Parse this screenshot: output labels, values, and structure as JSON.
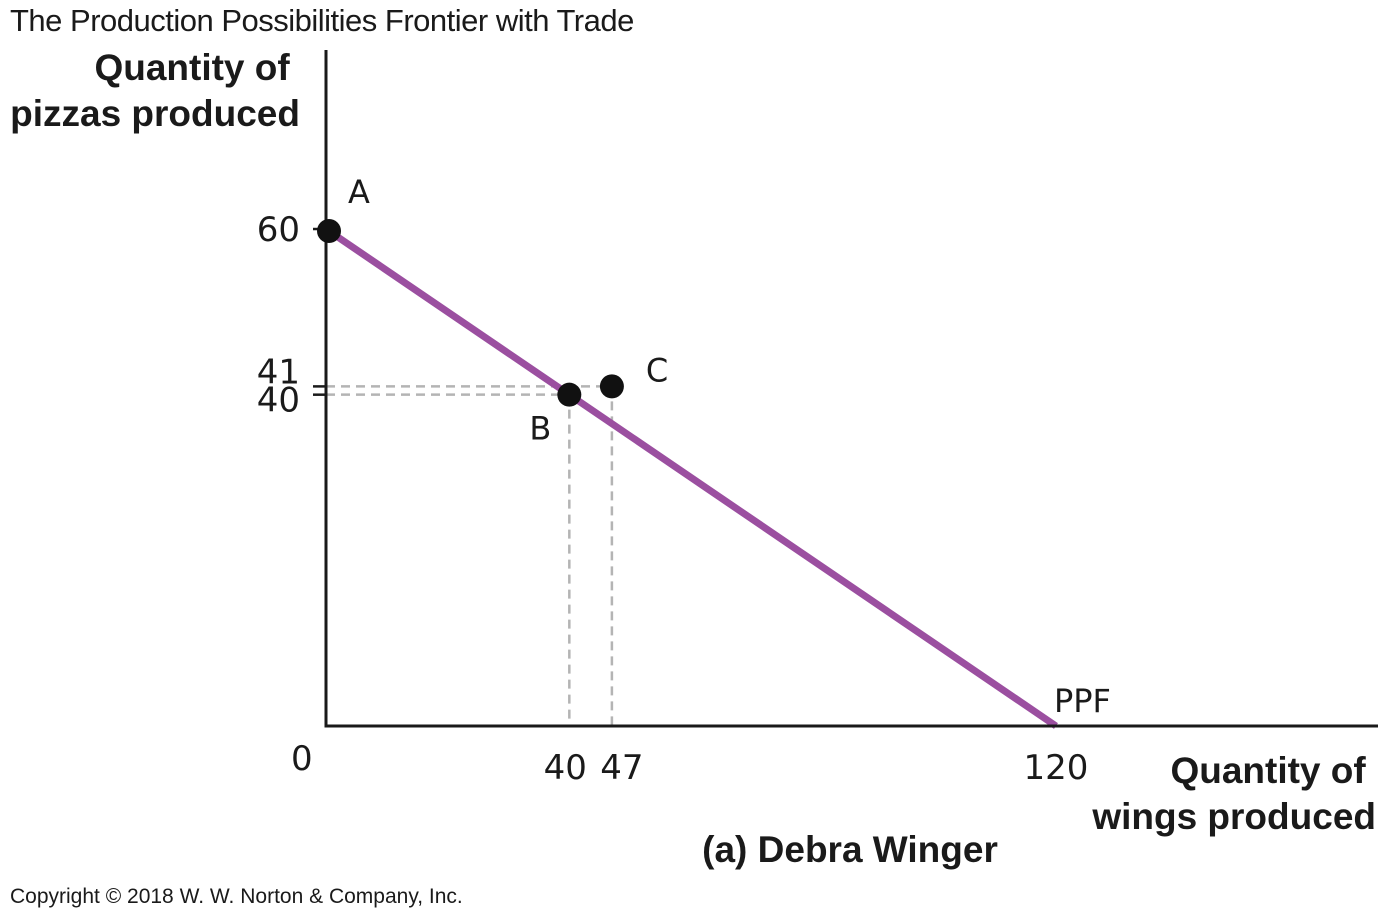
{
  "title": "The Production Possibilities Frontier with Trade",
  "copyright": "Copyright © 2018 W. W. Norton & Company, Inc.",
  "colors": {
    "ppf": "#9b4fa0",
    "axis": "#1a1a1a",
    "guide": "#b4b4b4",
    "point": "#111111"
  },
  "chart_data": {
    "type": "line",
    "title": "The Production Possibilities Frontier with Trade",
    "subtitle": "(a) Debra Winger",
    "ylabel_lines": [
      "Quantity of",
      "pizzas produced"
    ],
    "xlabel_lines": [
      "Quantity of",
      "wings produced"
    ],
    "origin_label": "0",
    "xlim": [
      0,
      145
    ],
    "ylim": [
      0,
      80
    ],
    "x_ticks": [
      {
        "value": 40,
        "label": "40"
      },
      {
        "value": 47,
        "label": "47"
      },
      {
        "value": 120,
        "label": "120"
      }
    ],
    "y_ticks": [
      {
        "value": 60,
        "label": "60"
      },
      {
        "value": 41,
        "label": "41"
      },
      {
        "value": 40,
        "label": "40"
      }
    ],
    "series": [
      {
        "name": "PPF",
        "points": [
          [
            0,
            60
          ],
          [
            120,
            0
          ]
        ]
      }
    ],
    "points": [
      {
        "label": "A",
        "x": 0,
        "y": 60
      },
      {
        "label": "B",
        "x": 40,
        "y": 40
      },
      {
        "label": "C",
        "x": 47,
        "y": 41
      }
    ],
    "guides": [
      {
        "x": 40,
        "y": 40
      },
      {
        "x": 47,
        "y": 41
      }
    ],
    "grid": false
  }
}
